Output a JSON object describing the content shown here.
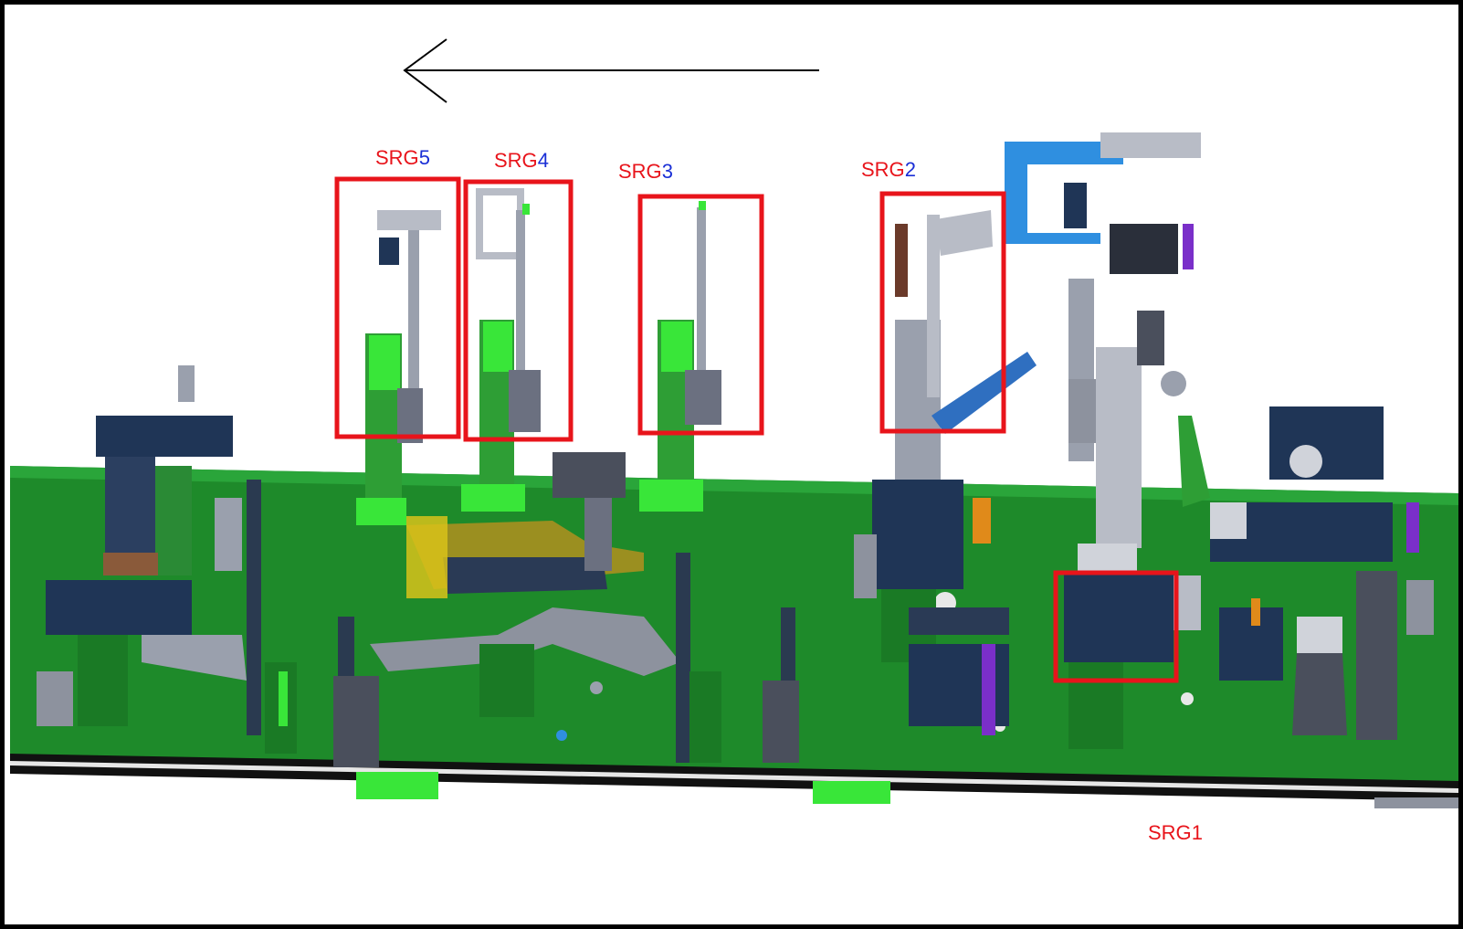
{
  "diagram": {
    "flow_direction": "right-to-left",
    "labels": [
      {
        "id": "srg5",
        "prefix": "SRG",
        "number": "5",
        "number_color": "#1a2fd6"
      },
      {
        "id": "srg4",
        "prefix": "SRG",
        "number": "4",
        "number_color": "#1a2fd6"
      },
      {
        "id": "srg3",
        "prefix": "SRG",
        "number": "3",
        "number_color": "#1a2fd6"
      },
      {
        "id": "srg2",
        "prefix": "SRG",
        "number": "2",
        "number_color": "#1a2fd6"
      },
      {
        "id": "srg1",
        "prefix": "SRG",
        "number": "1",
        "number_color": "#e8141b"
      }
    ],
    "colors": {
      "highlight_box": "#e8141b",
      "base_plate": "#1e8a2a",
      "fixture_green": "#39e639",
      "fixture_navy": "#1f3556",
      "fixture_gray": "#9aa0ad",
      "fixture_blue": "#2f8fe0",
      "fixture_yellow": "#d8c21a",
      "fixture_purple": "#7a2fc9"
    }
  }
}
